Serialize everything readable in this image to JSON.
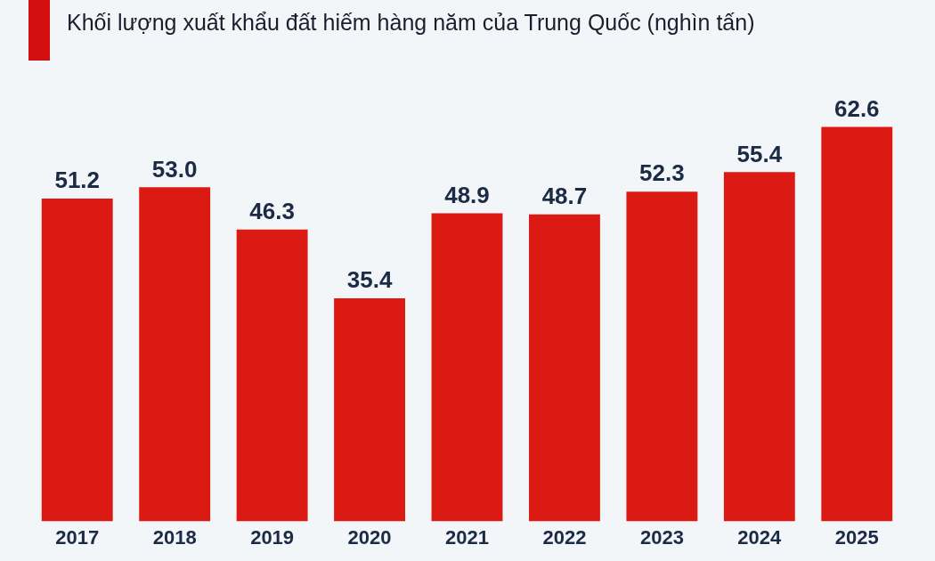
{
  "chart_data": {
    "type": "bar",
    "title": "Khối lượng xuất khẩu đất hiếm hàng năm của Trung Quốc (nghìn tấn)",
    "categories": [
      "2017",
      "2018",
      "2019",
      "2020",
      "2021",
      "2022",
      "2023",
      "2024",
      "2025"
    ],
    "values": [
      51.2,
      53.0,
      46.3,
      35.4,
      48.9,
      48.7,
      52.3,
      55.4,
      62.6
    ],
    "value_labels": [
      "51.2",
      "53.0",
      "46.3",
      "35.4",
      "48.9",
      "48.7",
      "52.3",
      "55.4",
      "62.6"
    ],
    "color": "#dc1a14",
    "grid": false,
    "legend": false,
    "tick_labels": "x"
  }
}
